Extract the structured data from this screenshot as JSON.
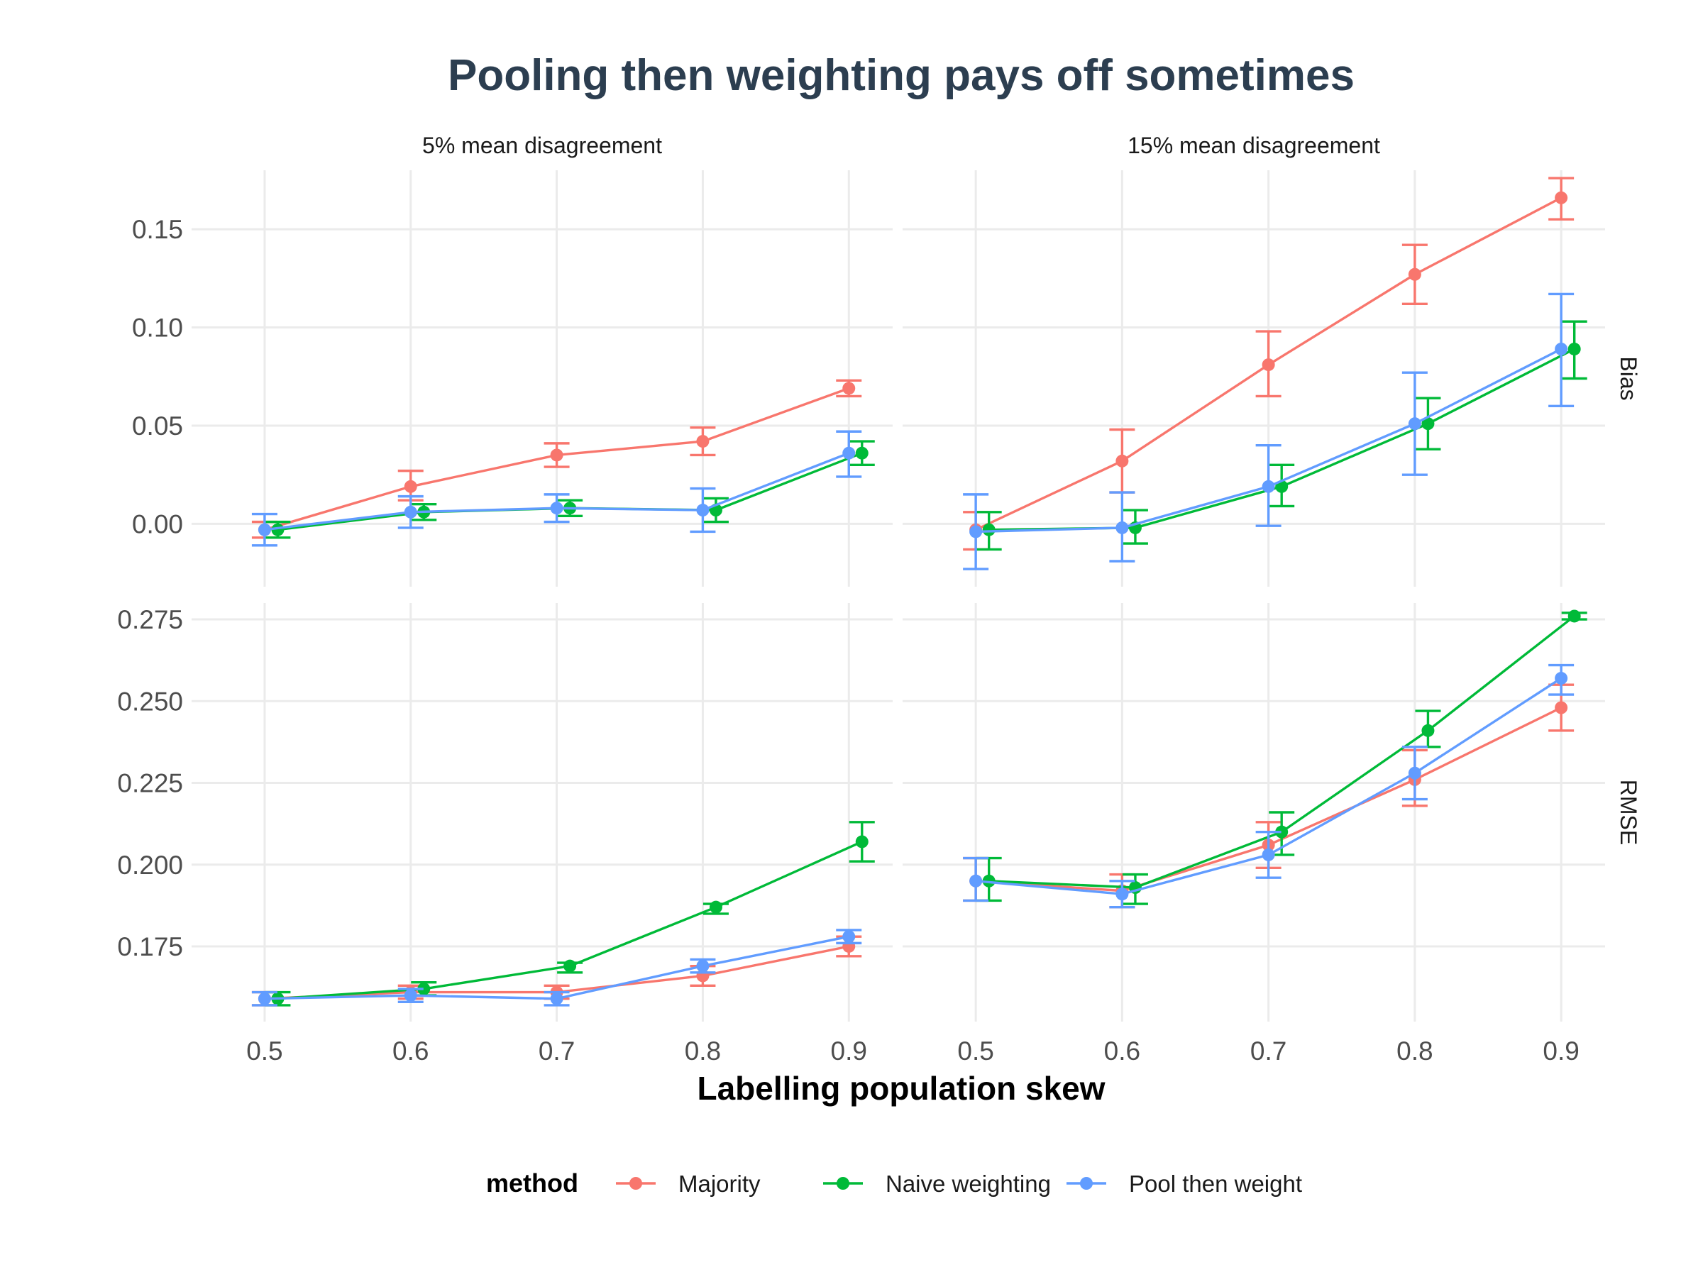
{
  "chart_data": {
    "type": "line",
    "title": "Pooling then weighting pays off sometimes",
    "xlabel": "Labelling population skew",
    "x": [
      0.5,
      0.6,
      0.7,
      0.8,
      0.9
    ],
    "x_ticks": [
      "0.5",
      "0.6",
      "0.7",
      "0.8",
      "0.9"
    ],
    "col_facets": [
      "5% mean disagreement",
      "15% mean disagreement"
    ],
    "row_facets": [
      "Bias",
      "RMSE"
    ],
    "legend": {
      "title": "method",
      "position": "bottom",
      "entries": [
        "Majority",
        "Naive weighting",
        "Pool then weight"
      ]
    },
    "colors": {
      "Majority": "#F8766D",
      "Naive weighting": "#00BA38",
      "Pool then weight": "#619CFF",
      "grid": "#ebebeb",
      "title": "#2c3e50"
    },
    "grid": true,
    "error_bars": true,
    "rows": [
      {
        "name": "Bias",
        "ylim": [
          -0.032,
          0.18
        ],
        "y_ticks": [
          {
            "value": 0.0,
            "label": "0.00"
          },
          {
            "value": 0.05,
            "label": "0.05"
          },
          {
            "value": 0.1,
            "label": "0.10"
          },
          {
            "value": 0.15,
            "label": "0.15"
          }
        ]
      },
      {
        "name": "RMSE",
        "ylim": [
          0.152,
          0.28
        ],
        "y_ticks": [
          {
            "value": 0.175,
            "label": "0.175"
          },
          {
            "value": 0.2,
            "label": "0.200"
          },
          {
            "value": 0.225,
            "label": "0.225"
          },
          {
            "value": 0.25,
            "label": "0.250"
          },
          {
            "value": 0.275,
            "label": "0.275"
          }
        ]
      }
    ],
    "panels": [
      {
        "col": 0,
        "row": 0,
        "series": [
          {
            "name": "Majority",
            "values": [
              -0.003,
              0.019,
              0.035,
              0.042,
              0.069
            ],
            "lower": [
              -0.007,
              0.012,
              0.029,
              0.035,
              0.065
            ],
            "upper": [
              0.001,
              0.027,
              0.041,
              0.049,
              0.073
            ]
          },
          {
            "name": "Naive weighting",
            "values": [
              -0.003,
              0.006,
              0.008,
              0.007,
              0.036
            ],
            "lower": [
              -0.007,
              0.002,
              0.004,
              0.001,
              0.03
            ],
            "upper": [
              0.001,
              0.01,
              0.012,
              0.013,
              0.042
            ]
          },
          {
            "name": "Pool then weight",
            "values": [
              -0.003,
              0.006,
              0.008,
              0.007,
              0.036
            ],
            "lower": [
              -0.011,
              -0.002,
              0.001,
              -0.004,
              0.024
            ],
            "upper": [
              0.005,
              0.014,
              0.015,
              0.018,
              0.047
            ]
          }
        ]
      },
      {
        "col": 1,
        "row": 0,
        "series": [
          {
            "name": "Majority",
            "values": [
              -0.003,
              0.032,
              0.081,
              0.127,
              0.166
            ],
            "lower": [
              -0.013,
              0.016,
              0.065,
              0.112,
              0.155
            ],
            "upper": [
              0.006,
              0.048,
              0.098,
              0.142,
              0.176
            ]
          },
          {
            "name": "Naive weighting",
            "values": [
              -0.003,
              -0.002,
              0.019,
              0.051,
              0.089
            ],
            "lower": [
              -0.013,
              -0.01,
              0.009,
              0.038,
              0.074
            ],
            "upper": [
              0.006,
              0.007,
              0.03,
              0.064,
              0.103
            ]
          },
          {
            "name": "Pool then weight",
            "values": [
              -0.004,
              -0.002,
              0.019,
              0.051,
              0.089
            ],
            "lower": [
              -0.023,
              -0.019,
              -0.001,
              0.025,
              0.06
            ],
            "upper": [
              0.015,
              0.016,
              0.04,
              0.077,
              0.117
            ]
          }
        ]
      },
      {
        "col": 0,
        "row": 1,
        "series": [
          {
            "name": "Majority",
            "values": [
              0.159,
              0.161,
              0.161,
              0.166,
              0.175
            ],
            "lower": [
              0.157,
              0.159,
              0.159,
              0.163,
              0.172
            ],
            "upper": [
              0.161,
              0.163,
              0.163,
              0.169,
              0.178
            ]
          },
          {
            "name": "Naive weighting",
            "values": [
              0.159,
              0.162,
              0.169,
              0.187,
              0.207
            ],
            "lower": [
              0.157,
              0.16,
              0.167,
              0.185,
              0.201
            ],
            "upper": [
              0.161,
              0.164,
              0.17,
              0.188,
              0.213
            ]
          },
          {
            "name": "Pool then weight",
            "values": [
              0.159,
              0.16,
              0.159,
              0.169,
              0.178
            ],
            "lower": [
              0.157,
              0.158,
              0.157,
              0.167,
              0.176
            ],
            "upper": [
              0.161,
              0.162,
              0.161,
              0.171,
              0.18
            ]
          }
        ]
      },
      {
        "col": 1,
        "row": 1,
        "series": [
          {
            "name": "Majority",
            "values": [
              0.195,
              0.192,
              0.206,
              0.226,
              0.248
            ],
            "lower": [
              0.189,
              0.187,
              0.199,
              0.218,
              0.241
            ],
            "upper": [
              0.202,
              0.197,
              0.213,
              0.235,
              0.255
            ]
          },
          {
            "name": "Naive weighting",
            "values": [
              0.195,
              0.193,
              0.21,
              0.241,
              0.276
            ],
            "lower": [
              0.189,
              0.188,
              0.203,
              0.236,
              0.275
            ],
            "upper": [
              0.202,
              0.197,
              0.216,
              0.247,
              0.277
            ]
          },
          {
            "name": "Pool then weight",
            "values": [
              0.195,
              0.191,
              0.203,
              0.228,
              0.257
            ],
            "lower": [
              0.189,
              0.187,
              0.196,
              0.22,
              0.252
            ],
            "upper": [
              0.202,
              0.195,
              0.21,
              0.236,
              0.261
            ]
          }
        ]
      }
    ]
  }
}
